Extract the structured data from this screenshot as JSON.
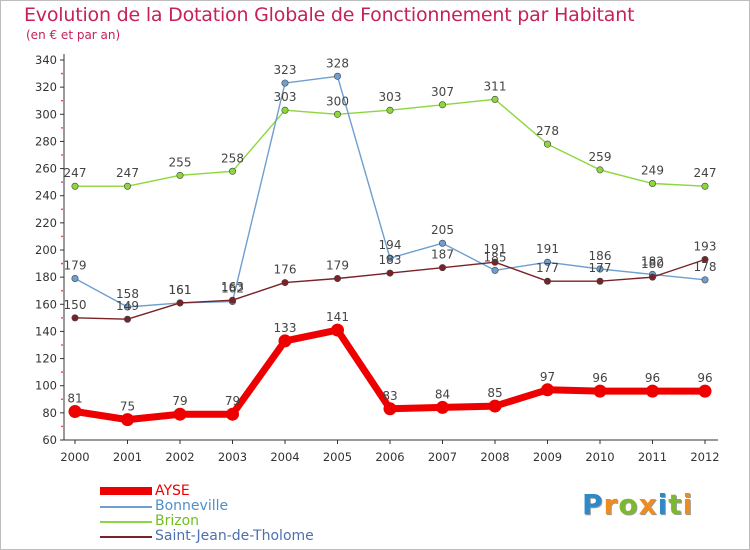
{
  "title": "Evolution de la Dotation Globale de Fonctionnement par Habitant",
  "subtitle": "(en € et par an)",
  "logo": {
    "text": "Proxiti",
    "letters": [
      "P",
      "r",
      "o",
      "x",
      "i",
      "t",
      "i"
    ],
    "colors": [
      "#2e89c9",
      "#f08b1d",
      "#7cb92f",
      "#f08b1d",
      "#2e89c9",
      "#7cb92f",
      "#f08b1d"
    ]
  },
  "chart_data": {
    "type": "line",
    "title": "Evolution de la Dotation Globale de Fonctionnement par Habitant",
    "subtitle": "(en € et par an)",
    "xlabel": "",
    "ylabel": "",
    "ylim": [
      60,
      340
    ],
    "yticks": [
      60,
      80,
      100,
      120,
      140,
      160,
      180,
      200,
      220,
      240,
      260,
      280,
      300,
      320,
      340
    ],
    "x": [
      "2000",
      "2001",
      "2002",
      "2003",
      "2004",
      "2005",
      "2006",
      "2007",
      "2008",
      "2009",
      "2010",
      "2011",
      "2012"
    ],
    "grid": false,
    "legend_position": "bottom-left",
    "series": [
      {
        "name": "Brizon",
        "color": "#8dd63c",
        "values": [
          247,
          247,
          255,
          258,
          303,
          300,
          303,
          307,
          311,
          278,
          259,
          249,
          247
        ]
      },
      {
        "name": "Bonneville",
        "color": "#6f9fcf",
        "values": [
          179,
          158,
          161,
          162,
          323,
          328,
          194,
          205,
          185,
          191,
          186,
          182,
          178
        ]
      },
      {
        "name": "Saint-Jean-de-Tholome",
        "color": "#7a2226",
        "values": [
          150,
          149,
          161,
          163,
          176,
          179,
          183,
          187,
          191,
          177,
          177,
          180,
          193
        ]
      },
      {
        "name": "AYSE",
        "color": "#ee0000",
        "values": [
          81,
          75,
          79,
          79,
          133,
          141,
          83,
          84,
          85,
          97,
          96,
          96,
          96
        ]
      }
    ],
    "data_labels": {
      "Brizon": [
        "247",
        "247",
        "255",
        "258",
        "303",
        "300",
        "303",
        "307",
        "311",
        "278",
        "259",
        "249",
        "247"
      ],
      "Bonneville": [
        "179",
        "158",
        "161",
        "162",
        "323",
        "328",
        "194",
        "205",
        "185",
        "191",
        "186",
        "182",
        "178"
      ],
      "Saint-Jean-de-Tholome": [
        "150",
        "149",
        "161",
        "163",
        "176",
        "179",
        "183",
        "187",
        "191",
        "177",
        "177",
        "180",
        "193"
      ],
      "AYSE": [
        "81",
        "75",
        "79",
        "79",
        "133",
        "141",
        "83",
        "84",
        "85",
        "97",
        "96",
        "96",
        "96"
      ]
    },
    "legend": [
      "AYSE",
      "Bonneville",
      "Brizon",
      "Saint-Jean-de-Tholome"
    ]
  }
}
